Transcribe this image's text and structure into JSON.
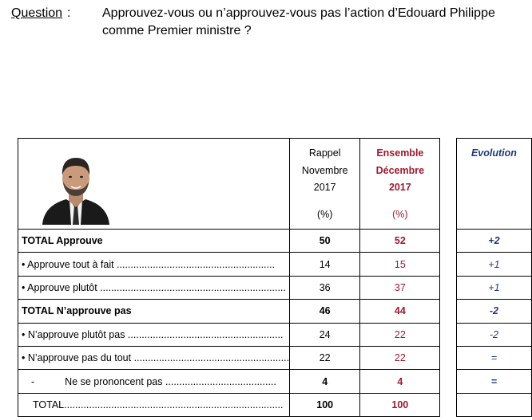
{
  "question": {
    "label": "Question",
    "colon": ":",
    "text": "Approuvez-vous ou n’approuvez-vous pas l’action d’Edouard Philippe comme Premier ministre ?"
  },
  "header": {
    "nov_line1": "Rappel",
    "nov_line2": "Novembre",
    "nov_line3": "2017",
    "nov_unit": "(%)",
    "dec_line1": "Ensemble",
    "dec_line2": "Décembre",
    "dec_line3": "2017",
    "dec_unit": "(%)",
    "evolution": "Evolution"
  },
  "rows": [
    {
      "label": "TOTAL Approuve",
      "nov": "50",
      "dec": "52",
      "evo": "+2"
    },
    {
      "label": "• Approuve tout à fait .........................................................",
      "nov": "14",
      "dec": "15",
      "evo": "+1"
    },
    {
      "label": "• Approuve plutôt ...................................................................",
      "nov": "36",
      "dec": "37",
      "evo": "+1"
    },
    {
      "label": "TOTAL N’approuve pas",
      "nov": "46",
      "dec": "44",
      "evo": "-2"
    },
    {
      "label": "• N’approuve plutôt pas ........................................................",
      "nov": "24",
      "dec": "22",
      "evo": "-2"
    },
    {
      "label": "• N’approuve pas du tout ........................................................",
      "nov": "22",
      "dec": "22",
      "evo": "="
    },
    {
      "dash": "-",
      "label": "Ne se prononcent pas ........................................",
      "nov": "4",
      "dec": "4",
      "evo": "="
    },
    {
      "label": "TOTAL...............................................................................",
      "nov": "100",
      "dec": "100",
      "evo": ""
    }
  ],
  "colors": {
    "december": "#9b1b30",
    "evolution": "#1f3a7a"
  }
}
